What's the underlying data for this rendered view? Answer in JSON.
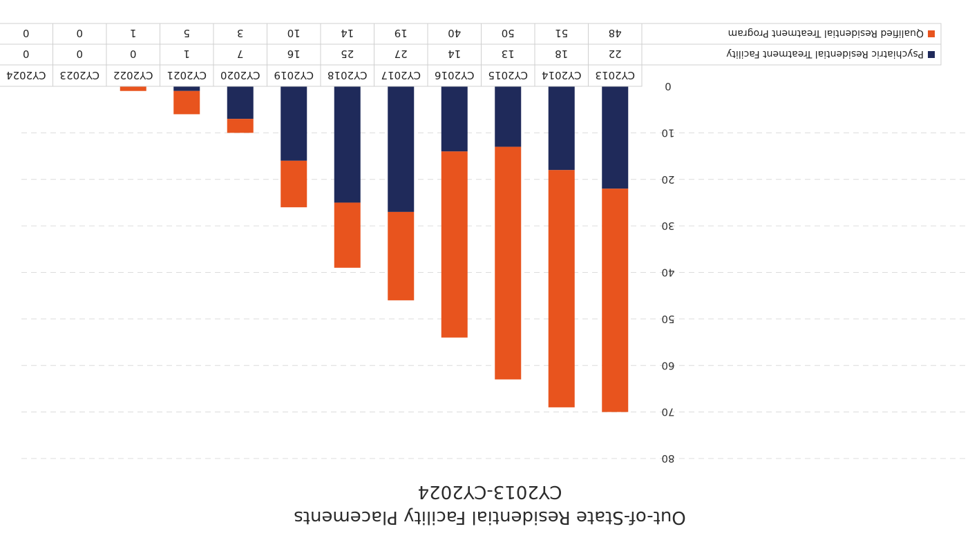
{
  "chart_data": {
    "type": "bar",
    "stacked": true,
    "title": "Out-of-State Residential Facility Placements",
    "subtitle": "CY2013-CY2024",
    "categories": [
      "CY2013",
      "CY2014",
      "CY2015",
      "CY2016",
      "CY2017",
      "CY2018",
      "CY2019",
      "CY2020",
      "CY2021",
      "CY2022",
      "CY2023",
      "CY2024"
    ],
    "series": [
      {
        "name": "Psychiatric Residential Treatment Facility",
        "color": "#1f2a5a",
        "values": [
          22,
          18,
          13,
          14,
          27,
          25,
          16,
          7,
          1,
          0,
          0,
          0
        ]
      },
      {
        "name": "Qualified Residential Treatment Program",
        "color": "#e8541e",
        "values": [
          48,
          51,
          50,
          40,
          19,
          14,
          10,
          3,
          5,
          1,
          0,
          0
        ]
      }
    ],
    "yticks": [
      0,
      10,
      20,
      30,
      40,
      50,
      60,
      70,
      80
    ],
    "ylim": [
      0,
      80
    ],
    "grid": true,
    "legend": "data table below the chart"
  }
}
